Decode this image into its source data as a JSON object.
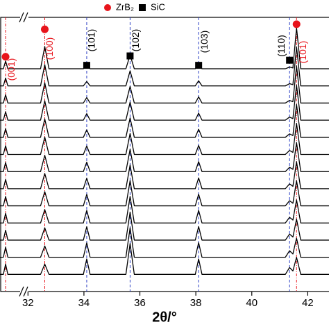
{
  "chart_data": {
    "type": "line",
    "xlabel": "2θ/°",
    "xlim": [
      31.0,
      42.76
    ],
    "ylim": [
      0,
      16
    ],
    "xticks": [
      32,
      34,
      36,
      38,
      40,
      42
    ],
    "color": "#000000",
    "x": [
      31.0,
      31.12,
      31.2,
      31.28,
      32.45,
      32.6,
      32.75,
      33.98,
      34.1,
      34.22,
      35.5,
      35.65,
      35.8,
      37.98,
      38.1,
      38.22,
      41.2,
      41.35,
      41.47,
      41.6,
      41.75,
      42.76
    ],
    "series": [
      {
        "values": [
          1,
          1,
          1.6,
          1,
          1,
          1.6,
          1,
          1,
          1.9,
          1,
          1,
          2.8,
          1,
          1,
          1.9,
          1,
          1,
          1.4,
          1.2,
          2,
          1,
          1
        ]
      },
      {
        "values": [
          2,
          2,
          2.59,
          2,
          2,
          2.66,
          2,
          2,
          2.84,
          2,
          2,
          3.72,
          2,
          2,
          2.85,
          2,
          2,
          2.38,
          2.19,
          3.12,
          2,
          2
        ]
      },
      {
        "values": [
          3,
          3,
          3.58,
          3,
          3,
          3.72,
          3,
          3,
          3.78,
          3,
          3,
          4.63,
          3,
          3,
          3.79,
          3,
          3,
          3.35,
          3.18,
          4.23,
          3,
          3
        ]
      },
      {
        "values": [
          4,
          4,
          4.56,
          4,
          4,
          4.78,
          4,
          4,
          4.73,
          4,
          4,
          5.55,
          4,
          4,
          4.74,
          4,
          4,
          4.33,
          4.17,
          5.35,
          4,
          4
        ]
      },
      {
        "values": [
          5,
          5,
          5.55,
          5,
          5,
          5.83,
          5,
          5,
          5.67,
          5,
          5,
          6.47,
          5,
          5,
          5.68,
          5,
          5,
          5.3,
          5.15,
          6.47,
          5,
          5
        ]
      },
      {
        "values": [
          6,
          6,
          6.54,
          6,
          6,
          6.89,
          6,
          6,
          6.61,
          6,
          6,
          7.38,
          6,
          6,
          6.63,
          6,
          6,
          6.28,
          6.14,
          7.58,
          6,
          6
        ]
      },
      {
        "values": [
          7,
          7,
          7.53,
          7,
          7,
          7.95,
          7,
          7,
          7.55,
          7,
          7,
          8.3,
          7,
          7,
          7.58,
          7,
          7,
          7.25,
          7.13,
          8.7,
          7,
          7
        ]
      },
      {
        "values": [
          8,
          8,
          8.51,
          8,
          8,
          9.01,
          8,
          8,
          8.49,
          8,
          8,
          9.22,
          8,
          8,
          8.52,
          8,
          8,
          8.23,
          8.12,
          9.82,
          8,
          8
        ]
      },
      {
        "values": [
          9,
          9,
          9.5,
          9,
          9,
          10.07,
          9,
          9,
          9.43,
          9,
          9,
          10.13,
          9,
          9,
          9.47,
          9,
          9,
          9.2,
          9.1,
          10.93,
          9,
          9
        ]
      },
      {
        "values": [
          10,
          10,
          10.49,
          10,
          10,
          11.13,
          10,
          10,
          10.38,
          10,
          10,
          11.05,
          10,
          10,
          10.41,
          10,
          10,
          10.18,
          10.09,
          12.05,
          10,
          10
        ]
      },
      {
        "values": [
          11,
          11,
          11.48,
          11,
          11,
          12.18,
          11,
          11,
          11.32,
          11,
          11,
          11.97,
          11,
          11,
          11.36,
          11,
          11,
          11.15,
          11.08,
          13.17,
          11,
          11
        ]
      },
      {
        "values": [
          12,
          12,
          12.46,
          12,
          12,
          13.24,
          12,
          12,
          12.26,
          12,
          12,
          12.88,
          12,
          12,
          12.3,
          12,
          12,
          12.13,
          12.07,
          14.28,
          12,
          12
        ]
      },
      {
        "values": [
          13,
          13,
          13.45,
          13,
          13,
          14.3,
          13,
          13,
          13.2,
          13,
          13,
          13.8,
          13,
          13,
          13.25,
          13,
          13,
          13.1,
          13.05,
          15.4,
          13,
          13
        ]
      }
    ],
    "phases": [
      {
        "name": "ZrB₂",
        "color": "#e8141b",
        "line_color": "#e8141b",
        "marker": "circle",
        "peaks": [
          {
            "x": 31.2,
            "y": 13.7,
            "label": "(001)"
          },
          {
            "x": 32.6,
            "y": 15.3,
            "label": "(100)"
          },
          {
            "x": 41.6,
            "y": 15.6,
            "label": "(101)"
          }
        ]
      },
      {
        "name": "SiC",
        "color": "#000000",
        "line_color": "#2b3fc4",
        "marker": "square",
        "peaks": [
          {
            "x": 34.1,
            "y": 13.2,
            "label": "(101)"
          },
          {
            "x": 35.65,
            "y": 13.75,
            "label": "(102)"
          },
          {
            "x": 38.1,
            "y": 13.2,
            "label": "(103)"
          },
          {
            "x": 41.35,
            "y": 13.5,
            "label": "(110)"
          }
        ]
      }
    ]
  }
}
